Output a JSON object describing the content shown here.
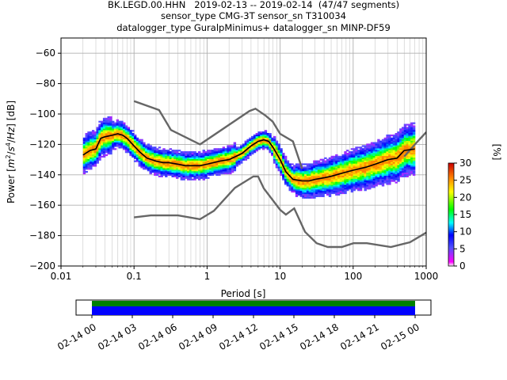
{
  "title": {
    "line1": "BK.LEGD.00.HHN   2019-02-13 -- 2019-02-14  (47/47 segments)",
    "line2": "sensor_type CMG-3T sensor_sn T310034",
    "line3": "datalogger_type GuralpMinimus+ datalogger_sn MINP-DF59"
  },
  "chart_data": [
    {
      "type": "heatmap",
      "name": "ppsd",
      "xlabel": "Period [s]",
      "ylabel": "Power [m2/s4/Hz] [dB]",
      "xscale": "log",
      "xlim": [
        0.01,
        1000
      ],
      "ylim": [
        -200,
        -50
      ],
      "x_ticks": [
        "0.01",
        "0.1",
        "1",
        "10",
        "100",
        "1000"
      ],
      "y_ticks": [
        "−60",
        "−80",
        "−100",
        "−120",
        "−140",
        "−160",
        "−180",
        "−200"
      ],
      "grid": true,
      "mean_curve": {
        "x": [
          0.02,
          0.025,
          0.03,
          0.035,
          0.04,
          0.05,
          0.06,
          0.07,
          0.08,
          0.1,
          0.12,
          0.15,
          0.2,
          0.25,
          0.3,
          0.4,
          0.5,
          0.6,
          0.8,
          1,
          1.5,
          2,
          3,
          4,
          5,
          6,
          7,
          8,
          10,
          12,
          15,
          20,
          25,
          30,
          40,
          50,
          70,
          100,
          150,
          200,
          300,
          400,
          500,
          700
        ],
        "y": [
          -127,
          -124,
          -123,
          -116,
          -115,
          -114,
          -113,
          -114,
          -116,
          -121,
          -125,
          -129,
          -131,
          -132,
          -132,
          -133,
          -134,
          -134,
          -134,
          -133,
          -131,
          -130,
          -126,
          -121,
          -118,
          -117,
          -118,
          -122,
          -130,
          -138,
          -143,
          -144,
          -144,
          -143,
          -142,
          -141,
          -139,
          -137,
          -135,
          -133,
          -130,
          -129,
          -124,
          -123
        ]
      },
      "high_noise_model": {
        "x": [
          0.1,
          0.22,
          0.32,
          0.8,
          3.8,
          4.6,
          6.3,
          7.9,
          10,
          15,
          20
        ],
        "y": [
          -91.5,
          -97.4,
          -110.5,
          -120,
          -98,
          -96.5,
          -101,
          -105,
          -113,
          -118,
          -136
        ]
      },
      "high_noise_model_tail": {
        "x": [
          500,
          700,
          1000
        ],
        "y": [
          -128,
          -120,
          -112
        ]
      },
      "low_noise_model": {
        "x": [
          0.1,
          0.17,
          0.4,
          0.8,
          1.24,
          2.4,
          4.3,
          5,
          6,
          10,
          12,
          15.6,
          21.9,
          31.6,
          45,
          70,
          101,
          154,
          328,
          600,
          1000
        ],
        "y": [
          -168,
          -166.7,
          -166.7,
          -169.2,
          -163.7,
          -148.6,
          -141.1,
          -141.1,
          -149,
          -163,
          -166.2,
          -162.1,
          -177.5,
          -185,
          -187.5,
          -187.5,
          -185,
          -185,
          -187.5,
          -184.4,
          -178
        ]
      },
      "colorbar": {
        "label": "[%]",
        "range": [
          0,
          30
        ],
        "ticks": [
          "0",
          "5",
          "10",
          "15",
          "20",
          "25",
          "30"
        ],
        "colors": [
          "#ffffff",
          "#ff00ff",
          "#0000ff",
          "#00ffff",
          "#00ff00",
          "#ffff00",
          "#ff8000",
          "#cc0000"
        ]
      }
    },
    {
      "type": "timeline",
      "name": "data coverage",
      "x_ticks": [
        "02-14 00",
        "02-14 03",
        "02-14 06",
        "02-14 09",
        "02-14 12",
        "02-14 15",
        "02-14 18",
        "02-14 21",
        "02-15 00"
      ],
      "bands": [
        {
          "color": "#008000",
          "from": "02-14 00",
          "to": "02-15 00"
        },
        {
          "color": "#0000ff",
          "from": "02-14 00",
          "to": "02-15 00"
        }
      ]
    }
  ]
}
